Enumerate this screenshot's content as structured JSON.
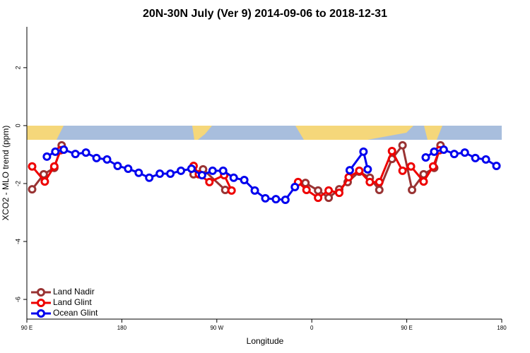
{
  "chart_data": {
    "type": "line",
    "title": "20N-30N July (Ver 9)   2014-09-06 to 2018-12-31",
    "x_label": "Longitude",
    "y_label": "XCO2 - MLO trend (ppm)",
    "xlim": [
      90,
      540
    ],
    "ylim": [
      -6.68,
      3.41
    ],
    "xticks": [
      {
        "value": 90,
        "label": "90 E"
      },
      180,
      {
        "value": 270,
        "label": "90 W"
      },
      {
        "value": 360,
        "label": "0"
      },
      {
        "value": 450,
        "label": "90 E"
      },
      {
        "value": 540,
        "label": "180"
      }
    ],
    "yticks": [
      -6,
      -4,
      -2,
      0,
      2
    ],
    "legend": "bottom-left",
    "series": [
      {
        "name": "Land Nadir",
        "color": "#993333",
        "x": [
          95,
          106,
          116,
          123,
          null,
          248,
          257,
          278,
          null,
          354,
          366,
          376,
          386,
          394,
          405,
          415,
          424,
          436,
          446,
          455,
          466,
          476,
          482
        ],
        "values": [
          -2.2,
          -1.68,
          -1.46,
          -0.68,
          null,
          -1.68,
          -1.51,
          -2.22,
          null,
          -1.98,
          -2.24,
          -2.49,
          -2.2,
          -1.95,
          -1.59,
          -1.8,
          -2.22,
          -1.15,
          -0.68,
          -2.22,
          -1.68,
          -1.46,
          -0.68
        ]
      },
      {
        "name": "Land Glint",
        "color": "#ee0000",
        "x": [
          95,
          107,
          116,
          122,
          null,
          248,
          253,
          263,
          277,
          284,
          null,
          347,
          355,
          366,
          376,
          386,
          395,
          405,
          415,
          424,
          436,
          446,
          454,
          466,
          475,
          481
        ],
        "values": [
          -1.41,
          -1.93,
          -1.41,
          -0.85,
          null,
          -1.39,
          -1.68,
          -1.95,
          -1.71,
          -2.24,
          null,
          -1.95,
          -2.22,
          -2.49,
          -2.24,
          -2.32,
          -1.78,
          -1.56,
          -1.95,
          -1.95,
          -0.88,
          -1.56,
          -1.41,
          -1.93,
          -1.41,
          -0.85
        ]
      },
      {
        "name": "Ocean Glint",
        "color": "#0000ee",
        "x": [
          109,
          117,
          125,
          136,
          146,
          156,
          166,
          176,
          186,
          196,
          206,
          216,
          226,
          236,
          246,
          256,
          266,
          276,
          286,
          296,
          306,
          316,
          326,
          335,
          344,
          null,
          396,
          409,
          413,
          null,
          468,
          476,
          485,
          495,
          505,
          515,
          525,
          535
        ],
        "values": [
          -1.07,
          -0.9,
          -0.83,
          -0.98,
          -0.93,
          -1.12,
          -1.17,
          -1.39,
          -1.49,
          -1.63,
          -1.8,
          -1.66,
          -1.66,
          -1.56,
          -1.49,
          -1.71,
          -1.56,
          -1.56,
          -1.8,
          -1.88,
          -2.24,
          -2.51,
          -2.54,
          -2.56,
          -2.12,
          null,
          -1.54,
          -0.9,
          -1.51,
          null,
          -1.1,
          -0.9,
          -0.83,
          -0.98,
          -0.93,
          -1.12,
          -1.17,
          -1.39
        ]
      }
    ]
  }
}
